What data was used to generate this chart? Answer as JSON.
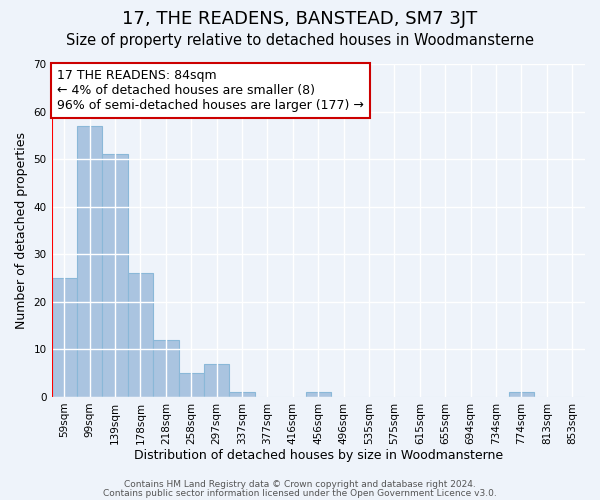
{
  "title": "17, THE READENS, BANSTEAD, SM7 3JT",
  "subtitle": "Size of property relative to detached houses in Woodmansterne",
  "xlabel": "Distribution of detached houses by size in Woodmansterne",
  "ylabel": "Number of detached properties",
  "bar_values": [
    25,
    57,
    51,
    26,
    12,
    5,
    7,
    1,
    0,
    0,
    1,
    0,
    0,
    0,
    0,
    0,
    0,
    0,
    1,
    0,
    0
  ],
  "x_tick_labels": [
    "59sqm",
    "99sqm",
    "139sqm",
    "178sqm",
    "218sqm",
    "258sqm",
    "297sqm",
    "337sqm",
    "377sqm",
    "416sqm",
    "456sqm",
    "496sqm",
    "535sqm",
    "575sqm",
    "615sqm",
    "655sqm",
    "694sqm",
    "734sqm",
    "774sqm",
    "813sqm",
    "853sqm"
  ],
  "bar_color": "#aac4e0",
  "bar_edge_color": "#8ab8d8",
  "ylim": [
    0,
    70
  ],
  "yticks": [
    0,
    10,
    20,
    30,
    40,
    50,
    60,
    70
  ],
  "annotation_text": "17 THE READENS: 84sqm\n← 4% of detached houses are smaller (8)\n96% of semi-detached houses are larger (177) →",
  "annotation_box_color": "#ffffff",
  "annotation_box_edge": "#cc0000",
  "footer_line1": "Contains HM Land Registry data © Crown copyright and database right 2024.",
  "footer_line2": "Contains public sector information licensed under the Open Government Licence v3.0.",
  "background_color": "#eef3fa",
  "grid_color": "#ffffff",
  "title_fontsize": 13,
  "subtitle_fontsize": 10.5,
  "axis_label_fontsize": 9,
  "tick_fontsize": 7.5,
  "annotation_fontsize": 9,
  "footer_fontsize": 6.5
}
